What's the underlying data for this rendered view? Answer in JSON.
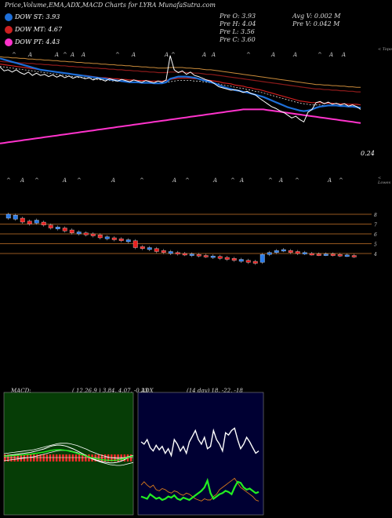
{
  "header": {
    "title": "Price,Volume,EMA,ADX,MACD Charts for LYRA MunafaSutra.com",
    "legend": [
      {
        "label": "DOW ST: 3.93",
        "color": "#1e6fd9"
      },
      {
        "label": "DOW MT: 4.67",
        "color": "#cc2020"
      },
      {
        "label": "DOW PT: 4.43",
        "color": "#ff33cc"
      }
    ],
    "stats_mid": [
      "Pre  O: 3.93",
      "Pre  H: 4.04",
      "Pre  L: 3.56",
      "Pre  C: 3.60"
    ],
    "stats_right": [
      "Avg V: 0.002  M",
      "Pre  V: 0.042  M"
    ]
  },
  "labels": {
    "last_price": "0.24",
    "top_marker": "< Topo",
    "low_marker": "< Lowes"
  },
  "chart_data": [
    {
      "type": "line",
      "name": "price-ema",
      "points": 90,
      "price": [
        4.35,
        4.28,
        4.3,
        4.26,
        4.3,
        4.25,
        4.22,
        4.26,
        4.2,
        4.24,
        4.2,
        4.22,
        4.18,
        4.21,
        4.17,
        4.2,
        4.16,
        4.19,
        4.15,
        4.18,
        4.17,
        4.14,
        4.16,
        4.12,
        4.15,
        4.13,
        4.1,
        4.14,
        4.12,
        4.1,
        4.13,
        4.11,
        4.09,
        4.12,
        4.1,
        4.08,
        4.11,
        4.09,
        4.07,
        4.1,
        4.08,
        4.12,
        4.55,
        4.3,
        4.25,
        4.28,
        4.22,
        4.26,
        4.2,
        4.18,
        4.15,
        4.12,
        4.1,
        4.05,
        4.0,
        3.98,
        3.96,
        3.94,
        3.95,
        3.93,
        3.9,
        3.92,
        3.88,
        3.86,
        3.8,
        3.75,
        3.7,
        3.65,
        3.62,
        3.58,
        3.55,
        3.5,
        3.45,
        3.48,
        3.42,
        3.38,
        3.55,
        3.6,
        3.72,
        3.74,
        3.7,
        3.73,
        3.69,
        3.71,
        3.68,
        3.7,
        3.66,
        3.68,
        3.65,
        3.6
      ],
      "ema_short": [
        4.5,
        4.48,
        4.46,
        4.44,
        4.42,
        4.4,
        4.38,
        4.36,
        4.34,
        4.32,
        4.3,
        4.29,
        4.28,
        4.27,
        4.26,
        4.25,
        4.24,
        4.23,
        4.22,
        4.21,
        4.2,
        4.19,
        4.18,
        4.17,
        4.16,
        4.15,
        4.14,
        4.13,
        4.12,
        4.11,
        4.1,
        4.09,
        4.08,
        4.08,
        4.08,
        4.07,
        4.07,
        4.07,
        4.06,
        4.06,
        4.06,
        4.08,
        4.14,
        4.16,
        4.18,
        4.18,
        4.18,
        4.17,
        4.16,
        4.14,
        4.12,
        4.1,
        4.08,
        4.06,
        4.03,
        4.0,
        3.98,
        3.96,
        3.94,
        3.93,
        3.91,
        3.9,
        3.88,
        3.86,
        3.84,
        3.82,
        3.79,
        3.76,
        3.73,
        3.7,
        3.67,
        3.64,
        3.62,
        3.6,
        3.58,
        3.57,
        3.58,
        3.6,
        3.63,
        3.65,
        3.66,
        3.67,
        3.67,
        3.67,
        3.66,
        3.66,
        3.65,
        3.65,
        3.64,
        3.63
      ],
      "ema_mid": [
        4.4,
        4.39,
        4.38,
        4.37,
        4.36,
        4.35,
        4.34,
        4.33,
        4.32,
        4.31,
        4.3,
        4.29,
        4.28,
        4.27,
        4.26,
        4.25,
        4.24,
        4.23,
        4.22,
        4.21,
        4.2,
        4.2,
        4.19,
        4.18,
        4.17,
        4.16,
        4.16,
        4.15,
        4.14,
        4.14,
        4.13,
        4.13,
        4.12,
        4.12,
        4.11,
        4.11,
        4.11,
        4.1,
        4.1,
        4.1,
        4.1,
        4.11,
        4.13,
        4.14,
        4.15,
        4.15,
        4.15,
        4.15,
        4.14,
        4.14,
        4.13,
        4.12,
        4.11,
        4.1,
        4.09,
        4.07,
        4.06,
        4.05,
        4.03,
        4.02,
        4.01,
        3.99,
        3.98,
        3.96,
        3.95,
        3.93,
        3.91,
        3.89,
        3.87,
        3.85,
        3.83,
        3.81,
        3.79,
        3.77,
        3.75,
        3.74,
        3.73,
        3.72,
        3.72,
        3.72,
        3.71,
        3.71,
        3.71,
        3.7,
        3.7,
        3.7,
        3.69,
        3.69,
        3.69,
        3.68
      ],
      "ema_long": [
        4.45,
        4.44,
        4.44,
        4.43,
        4.43,
        4.42,
        4.42,
        4.41,
        4.41,
        4.4,
        4.4,
        4.39,
        4.39,
        4.38,
        4.38,
        4.37,
        4.37,
        4.36,
        4.36,
        4.35,
        4.35,
        4.34,
        4.34,
        4.33,
        4.33,
        4.32,
        4.32,
        4.31,
        4.31,
        4.3,
        4.3,
        4.29,
        4.29,
        4.28,
        4.28,
        4.27,
        4.27,
        4.26,
        4.26,
        4.25,
        4.25,
        4.25,
        4.26,
        4.26,
        4.26,
        4.26,
        4.25,
        4.25,
        4.24,
        4.24,
        4.23,
        4.22,
        4.22,
        4.21,
        4.2,
        4.19,
        4.18,
        4.17,
        4.16,
        4.15,
        4.14,
        4.13,
        4.12,
        4.11,
        4.1,
        4.09,
        4.08,
        4.07,
        4.06,
        4.05,
        4.04,
        4.03,
        4.02,
        4.01,
        4.0,
        3.99,
        3.98,
        3.97,
        3.96,
        3.96,
        3.95,
        3.95,
        3.94,
        3.94,
        3.93,
        3.93,
        3.92,
        3.92,
        3.91,
        3.91
      ],
      "dow_pt": [
        3.0,
        3.01,
        3.02,
        3.03,
        3.04,
        3.05,
        3.06,
        3.07,
        3.08,
        3.09,
        3.1,
        3.11,
        3.12,
        3.13,
        3.14,
        3.15,
        3.16,
        3.17,
        3.18,
        3.19,
        3.2,
        3.21,
        3.22,
        3.23,
        3.24,
        3.25,
        3.26,
        3.27,
        3.28,
        3.29,
        3.3,
        3.31,
        3.32,
        3.33,
        3.34,
        3.35,
        3.36,
        3.37,
        3.38,
        3.39,
        3.4,
        3.41,
        3.42,
        3.43,
        3.44,
        3.45,
        3.46,
        3.47,
        3.48,
        3.49,
        3.5,
        3.51,
        3.52,
        3.53,
        3.54,
        3.55,
        3.56,
        3.57,
        3.58,
        3.59,
        3.6,
        3.6,
        3.6,
        3.6,
        3.6,
        3.6,
        3.59,
        3.58,
        3.57,
        3.56,
        3.55,
        3.54,
        3.53,
        3.52,
        3.51,
        3.5,
        3.49,
        3.48,
        3.47,
        3.46,
        3.45,
        3.44,
        3.43,
        3.42,
        3.41,
        3.4,
        3.39,
        3.38,
        3.37,
        3.36
      ]
    },
    {
      "type": "candlestick",
      "name": "daily-candles",
      "hlines": [
        "8",
        "7",
        "6",
        "5",
        "4"
      ],
      "candles": [
        [
          8,
          7.6,
          0
        ],
        [
          7.9,
          7.5,
          0
        ],
        [
          7.6,
          7.2,
          1
        ],
        [
          7.3,
          7.0,
          1
        ],
        [
          7.1,
          7.4,
          0
        ],
        [
          7.2,
          6.9,
          1
        ],
        [
          6.9,
          6.6,
          1
        ],
        [
          6.7,
          6.5,
          0
        ],
        [
          6.6,
          6.3,
          1
        ],
        [
          6.4,
          6.1,
          1
        ],
        [
          6.2,
          6.0,
          0
        ],
        [
          6.1,
          5.9,
          1
        ],
        [
          6.0,
          5.8,
          1
        ],
        [
          5.9,
          5.6,
          1
        ],
        [
          5.7,
          5.5,
          0
        ],
        [
          5.6,
          5.4,
          1
        ],
        [
          5.5,
          5.3,
          1
        ],
        [
          5.4,
          5.2,
          0
        ],
        [
          5.3,
          4.6,
          1
        ],
        [
          4.7,
          4.5,
          1
        ],
        [
          4.6,
          4.4,
          0
        ],
        [
          4.5,
          4.2,
          1
        ],
        [
          4.3,
          4.1,
          1
        ],
        [
          4.2,
          4.0,
          0
        ],
        [
          4.1,
          3.95,
          1
        ],
        [
          4.0,
          3.9,
          1
        ],
        [
          3.95,
          3.8,
          0
        ],
        [
          3.9,
          3.75,
          1
        ],
        [
          3.8,
          3.7,
          1
        ],
        [
          3.75,
          3.6,
          0
        ],
        [
          3.7,
          3.5,
          1
        ],
        [
          3.6,
          3.4,
          1
        ],
        [
          3.5,
          3.3,
          1
        ],
        [
          3.4,
          3.2,
          0
        ],
        [
          3.3,
          3.1,
          1
        ],
        [
          3.2,
          3.0,
          1
        ],
        [
          3.1,
          3.9,
          0
        ],
        [
          3.9,
          4.1,
          0
        ],
        [
          4.1,
          4.3,
          0
        ],
        [
          4.3,
          4.4,
          0
        ],
        [
          4.3,
          4.1,
          1
        ],
        [
          4.2,
          4.0,
          1
        ],
        [
          4.1,
          4.0,
          0
        ],
        [
          4.0,
          3.95,
          1
        ],
        [
          3.95,
          3.9,
          1
        ],
        [
          3.9,
          3.95,
          0
        ],
        [
          3.95,
          3.85,
          1
        ],
        [
          3.9,
          3.8,
          1
        ],
        [
          3.85,
          3.8,
          0
        ],
        [
          3.8,
          3.7,
          1
        ]
      ]
    },
    {
      "type": "line",
      "name": "macd",
      "title": "MACD:",
      "params": "( 12,26,9 ) 3.84, 4.07, -0.23",
      "macd": [
        0.02,
        0.03,
        0.04,
        0.05,
        0.06,
        0.07,
        0.08,
        0.09,
        0.1,
        0.12,
        0.14,
        0.16,
        0.18,
        0.21,
        0.24,
        0.26,
        0.27,
        0.27,
        0.26,
        0.24,
        0.21,
        0.18,
        0.14,
        0.1,
        0.06,
        0.02,
        -0.02,
        -0.05,
        -0.08,
        -0.1,
        -0.12,
        -0.13,
        -0.14,
        -0.14,
        -0.13,
        -0.11,
        -0.08,
        -0.04,
        0.0,
        0.03
      ],
      "signal": [
        0.0,
        0.01,
        0.02,
        0.03,
        0.04,
        0.05,
        0.06,
        0.07,
        0.08,
        0.09,
        0.11,
        0.13,
        0.15,
        0.17,
        0.19,
        0.21,
        0.23,
        0.24,
        0.24,
        0.24,
        0.23,
        0.21,
        0.19,
        0.16,
        0.13,
        0.1,
        0.06,
        0.03,
        0.0,
        -0.03,
        -0.05,
        -0.07,
        -0.09,
        -0.1,
        -0.11,
        -0.11,
        -0.1,
        -0.08,
        -0.06,
        -0.04
      ],
      "histogram_bars": 40
    },
    {
      "type": "line",
      "name": "adx",
      "title": "ADX",
      "params": "(14  day) 18,  -22,  -18",
      "adx": [
        60,
        58,
        62,
        55,
        52,
        57,
        53,
        56,
        50,
        54,
        48,
        62,
        58,
        52,
        56,
        50,
        60,
        65,
        70,
        62,
        58,
        64,
        54,
        56,
        70,
        62,
        58,
        52,
        68,
        66,
        70,
        72,
        62,
        54,
        58,
        64,
        60,
        55,
        50,
        52
      ],
      "plus_di": [
        12,
        11,
        10,
        14,
        12,
        10,
        11,
        9,
        10,
        12,
        11,
        13,
        10,
        9,
        11,
        10,
        9,
        11,
        13,
        15,
        17,
        20,
        26,
        15,
        10,
        12,
        14,
        15,
        17,
        16,
        14,
        20,
        25,
        24,
        20,
        18,
        19,
        17,
        15,
        16
      ],
      "minus_di": [
        22,
        25,
        22,
        20,
        22,
        18,
        17,
        19,
        18,
        16,
        15,
        17,
        16,
        14,
        13,
        15,
        14,
        12,
        10,
        9,
        8,
        10,
        9,
        9,
        12,
        14,
        18,
        20,
        22,
        24,
        26,
        28,
        24,
        20,
        18,
        16,
        14,
        12,
        9,
        8
      ]
    }
  ]
}
